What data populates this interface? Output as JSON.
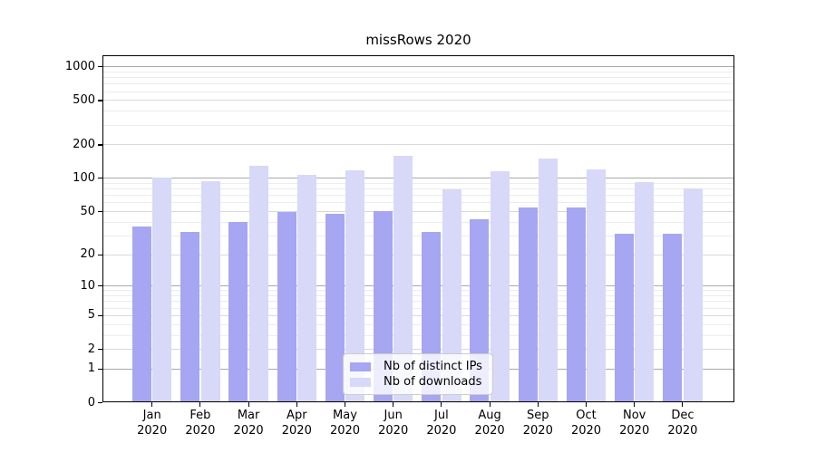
{
  "title": "missRows 2020",
  "year": "2020",
  "colors": {
    "ips_bar": "#a6a6f2",
    "downloads_bar": "#d8d8f8",
    "grid_power10": "#a9a9a9",
    "grid_major": "#d9d9d9",
    "grid_minor": "#ececec",
    "spine": "#000000"
  },
  "legend": {
    "items": [
      {
        "label": "Nb of distinct IPs",
        "color": "#a6a6f2"
      },
      {
        "label": "Nb of downloads",
        "color": "#d8d8f8"
      }
    ]
  },
  "chart_data": {
    "type": "bar",
    "title": "missRows 2020",
    "categories": [
      "Jan 2020",
      "Feb 2020",
      "Mar 2020",
      "Apr 2020",
      "May 2020",
      "Jun 2020",
      "Jul 2020",
      "Aug 2020",
      "Sep 2020",
      "Oct 2020",
      "Nov 2020",
      "Dec 2020"
    ],
    "month_labels": [
      "Jan",
      "Feb",
      "Mar",
      "Apr",
      "May",
      "Jun",
      "Jul",
      "Aug",
      "Sep",
      "Oct",
      "Nov",
      "Dec"
    ],
    "series": [
      {
        "name": "Nb of distinct IPs",
        "values": [
          36,
          32,
          40,
          49,
          47,
          50,
          32,
          42,
          54,
          54,
          31,
          31
        ]
      },
      {
        "name": "Nb of downloads",
        "values": [
          101,
          93,
          128,
          107,
          116,
          157,
          79,
          114,
          150,
          119,
          92,
          81
        ]
      }
    ],
    "yscale": "log1p",
    "ylim": [
      0,
      1250
    ],
    "yticks": [
      0,
      1,
      2,
      5,
      10,
      20,
      50,
      100,
      200,
      500,
      1000
    ],
    "yticks_minor": [
      3,
      4,
      6,
      7,
      8,
      9,
      30,
      40,
      60,
      70,
      80,
      90,
      300,
      400,
      600,
      700,
      800,
      900
    ],
    "grid": true,
    "legend_position": "lower-center-inside",
    "xlabel": "",
    "ylabel": ""
  }
}
